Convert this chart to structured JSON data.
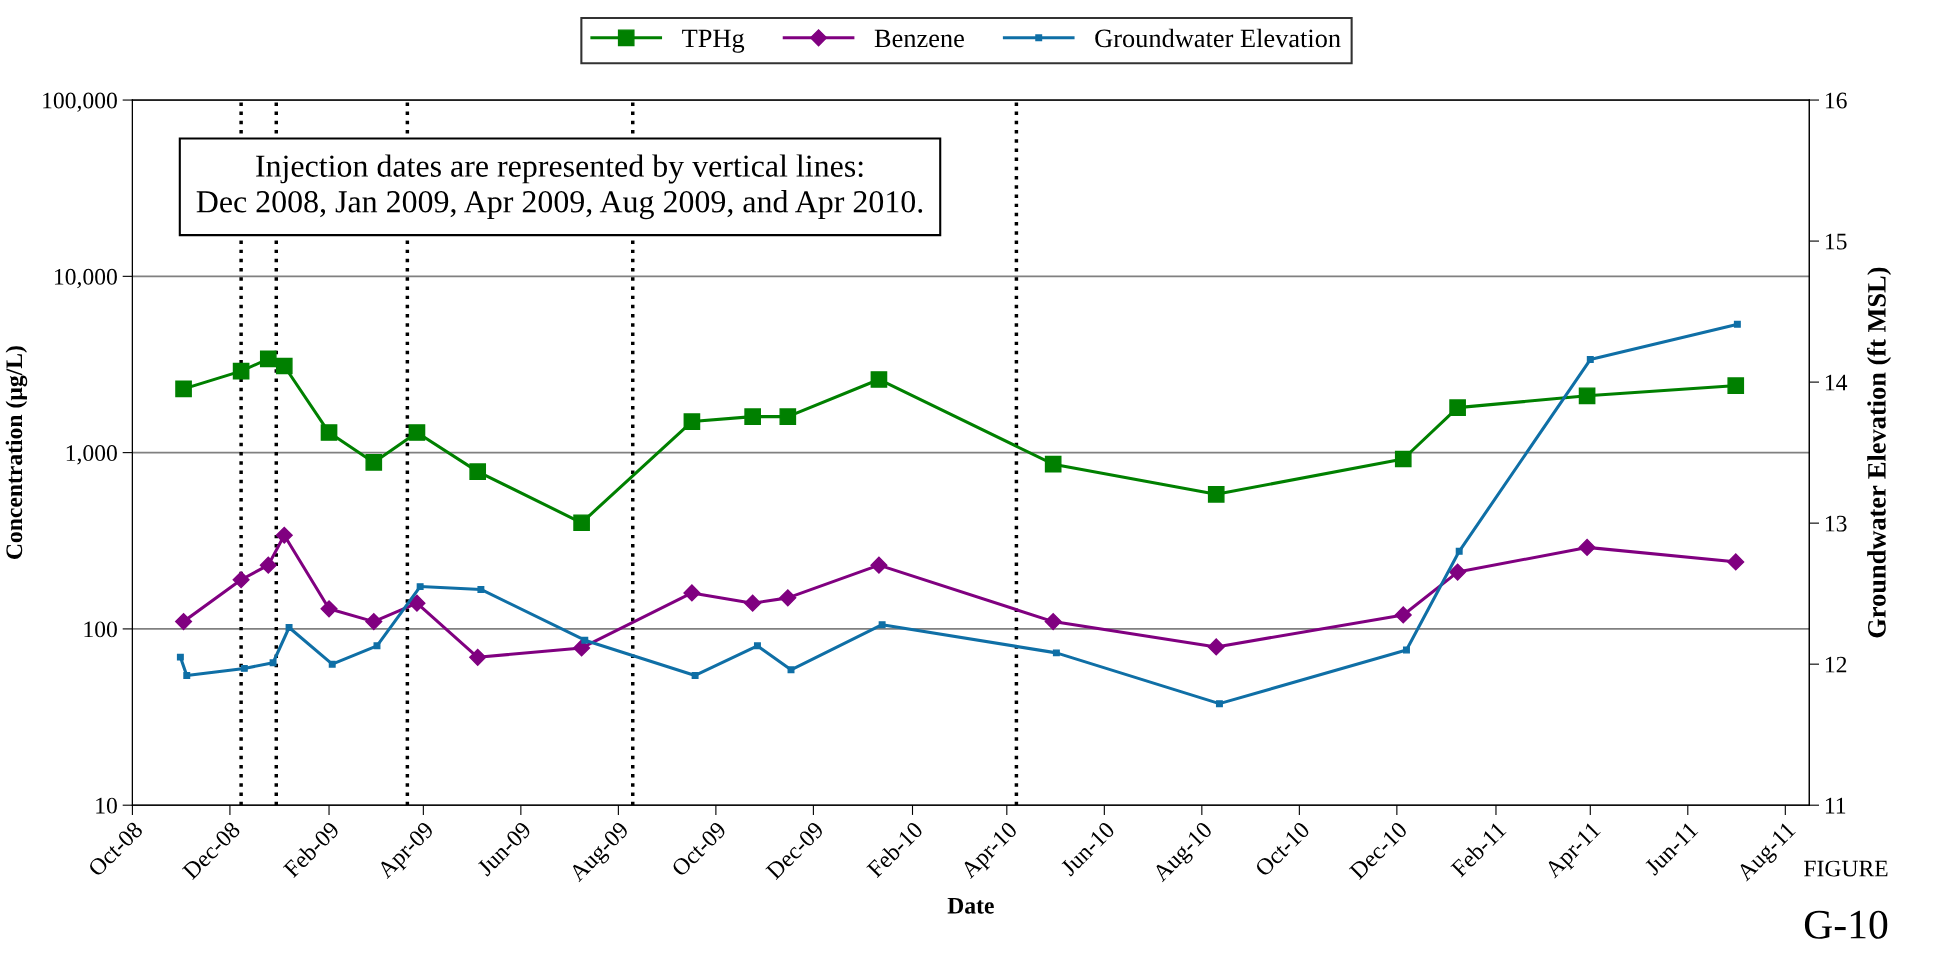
{
  "chart_data": {
    "type": "line",
    "xlabel": "Date",
    "ylabel": "Concentration (µg/L)",
    "y2label": "Groundwater Elevation (ft MSL)",
    "annotations": [
      "Injection dates are represented by vertical lines:\nDec 2008, Jan 2009, Apr 2009, Aug 2009, and Apr 2010.",
      "FIGURE",
      "G-10"
    ],
    "log": "y",
    "grid": "y",
    "legend": "top",
    "line_style": "solid",
    "xlim": [
      "2008-10-01",
      "2011-08-16"
    ],
    "xticks": [
      {
        "value": "2008-10-01",
        "label": "Oct-08"
      },
      {
        "value": "2008-12-01",
        "label": "Dec-08"
      },
      {
        "value": "2009-02-01",
        "label": "Feb-09"
      },
      {
        "value": "2009-04-01",
        "label": "Apr-09"
      },
      {
        "value": "2009-06-01",
        "label": "Jun-09"
      },
      {
        "value": "2009-08-01",
        "label": "Aug-09"
      },
      {
        "value": "2009-10-01",
        "label": "Oct-09"
      },
      {
        "value": "2009-12-01",
        "label": "Dec-09"
      },
      {
        "value": "2010-02-01",
        "label": "Feb-10"
      },
      {
        "value": "2010-04-01",
        "label": "Apr-10"
      },
      {
        "value": "2010-06-01",
        "label": "Jun-10"
      },
      {
        "value": "2010-08-01",
        "label": "Aug-10"
      },
      {
        "value": "2010-10-01",
        "label": "Oct-10"
      },
      {
        "value": "2010-12-01",
        "label": "Dec-10"
      },
      {
        "value": "2011-02-01",
        "label": "Feb-11"
      },
      {
        "value": "2011-04-01",
        "label": "Apr-11"
      },
      {
        "value": "2011-06-01",
        "label": "Jun-11"
      },
      {
        "value": "2011-08-01",
        "label": "Aug-11"
      }
    ],
    "ylim": [
      10,
      100000
    ],
    "yticks": [
      {
        "value": 10,
        "label": "10"
      },
      {
        "value": 100,
        "label": "100"
      },
      {
        "value": 1000,
        "label": "1,000"
      },
      {
        "value": 10000,
        "label": "10,000"
      },
      {
        "value": 100000,
        "label": "100,000"
      }
    ],
    "y2lim": [
      11,
      16
    ],
    "y2ticks": [
      11,
      12,
      13,
      14,
      15,
      16
    ],
    "ref_lines": [
      {
        "axis": "x",
        "value": "2008-12-08",
        "color": "#000000",
        "line_style": "dotted"
      },
      {
        "axis": "x",
        "value": "2008-12-30",
        "color": "#000000",
        "line_style": "dotted"
      },
      {
        "axis": "x",
        "value": "2009-03-22",
        "color": "#000000",
        "line_style": "dotted"
      },
      {
        "axis": "x",
        "value": "2009-08-10",
        "color": "#000000",
        "line_style": "dotted"
      },
      {
        "axis": "x",
        "value": "2010-04-07",
        "color": "#000000",
        "line_style": "dotted"
      }
    ],
    "series": [
      {
        "name": "TPHg",
        "color": "#008000",
        "marker": "square",
        "x": [
          "2008-11-02",
          "2008-12-08",
          "2008-12-25",
          "2009-01-04",
          "2009-02-01",
          "2009-03-01",
          "2009-03-28",
          "2009-05-05",
          "2009-07-09",
          "2009-09-16",
          "2009-10-24",
          "2009-11-15",
          "2010-01-11",
          "2010-04-30",
          "2010-08-10",
          "2010-12-05",
          "2011-01-08",
          "2011-03-30",
          "2011-07-01"
        ],
        "values": [
          2300,
          2900,
          3400,
          3100,
          1300,
          880,
          1300,
          780,
          400,
          1500,
          1600,
          1600,
          2600,
          860,
          580,
          920,
          1800,
          2100,
          2400
        ]
      },
      {
        "name": "Benzene",
        "color": "#800080",
        "marker": "diamond",
        "x": [
          "2008-11-02",
          "2008-12-08",
          "2008-12-25",
          "2009-01-04",
          "2009-02-01",
          "2009-03-01",
          "2009-03-28",
          "2009-05-05",
          "2009-07-09",
          "2009-09-16",
          "2009-10-24",
          "2009-11-15",
          "2010-01-11",
          "2010-04-30",
          "2010-08-10",
          "2010-12-05",
          "2011-01-08",
          "2011-03-30",
          "2011-07-01"
        ],
        "values": [
          110,
          190,
          230,
          340,
          130,
          110,
          140,
          69,
          78,
          160,
          140,
          150,
          230,
          110,
          79,
          120,
          210,
          290,
          240
        ]
      },
      {
        "name": "Groundwater Elevation",
        "color": "#0f6fa6",
        "marker": "square",
        "axis": "y2",
        "x": [
          "2008-10-31",
          "2008-11-04",
          "2008-12-10",
          "2008-12-28",
          "2009-01-07",
          "2009-02-03",
          "2009-03-03",
          "2009-03-30",
          "2009-05-07",
          "2009-07-11",
          "2009-09-18",
          "2009-10-27",
          "2009-11-17",
          "2010-01-13",
          "2010-05-02",
          "2010-08-12",
          "2010-12-07",
          "2011-01-09",
          "2011-04-01",
          "2011-07-02"
        ],
        "values": [
          12.05,
          11.92,
          11.97,
          12.01,
          12.26,
          12.0,
          12.13,
          12.55,
          12.53,
          12.17,
          11.92,
          12.13,
          11.96,
          12.28,
          12.08,
          11.72,
          12.1,
          12.8,
          14.16,
          14.41
        ]
      }
    ]
  }
}
